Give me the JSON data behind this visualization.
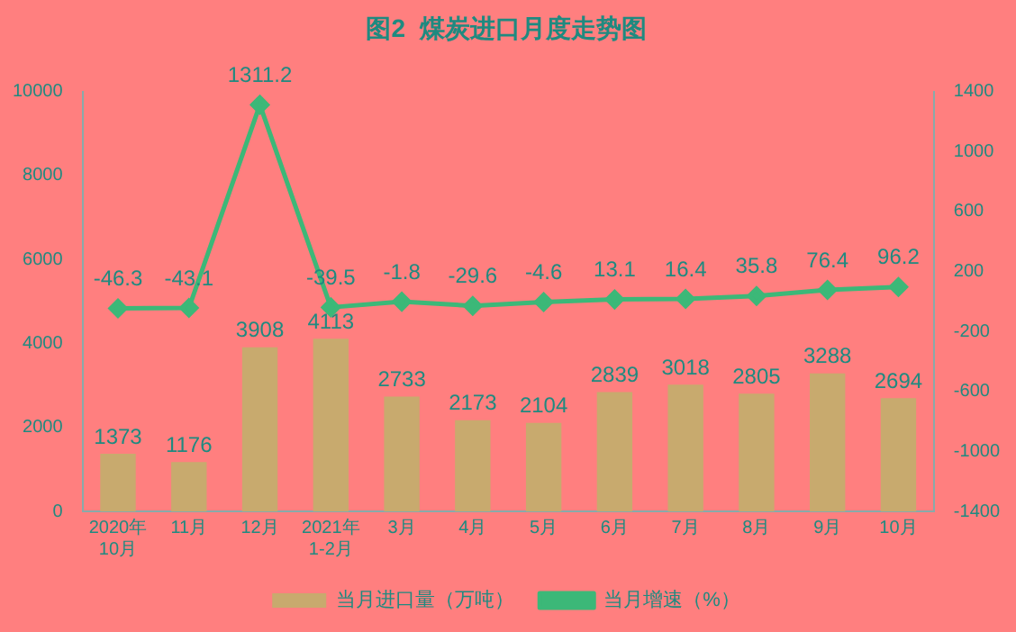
{
  "chart_data": {
    "type": "bar",
    "title": "图2  煤炭进口月度走势图",
    "categories": [
      "2020年\n10月",
      "11月",
      "12月",
      "2021年\n1-2月",
      "3月",
      "4月",
      "5月",
      "6月",
      "7月",
      "8月",
      "9月",
      "10月"
    ],
    "series": [
      {
        "name": "当月进口量（万吨）",
        "color": "#c8aa6e",
        "values": [
          1373,
          1176,
          3908,
          4113,
          2733,
          2173,
          2104,
          2839,
          3018,
          2805,
          3288,
          2694
        ]
      },
      {
        "name": "当月增速（%）",
        "type": "line",
        "axis": "y2",
        "color": "#3cb878",
        "values": [
          -46.3,
          -43.1,
          1311.2,
          -39.5,
          -1.8,
          -29.6,
          -4.6,
          13.1,
          16.4,
          35.8,
          76.4,
          96.2
        ]
      }
    ],
    "ylim": [
      0,
      10000
    ],
    "yticks": [
      0,
      2000,
      4000,
      6000,
      8000,
      10000
    ],
    "y2lim": [
      -1400,
      1400
    ],
    "y2ticks": [
      -1400,
      -1000,
      -600,
      -200,
      200,
      600,
      1000,
      1400
    ],
    "grid": false,
    "legend": "bottom",
    "marker": "diamond",
    "data_labels": true
  }
}
